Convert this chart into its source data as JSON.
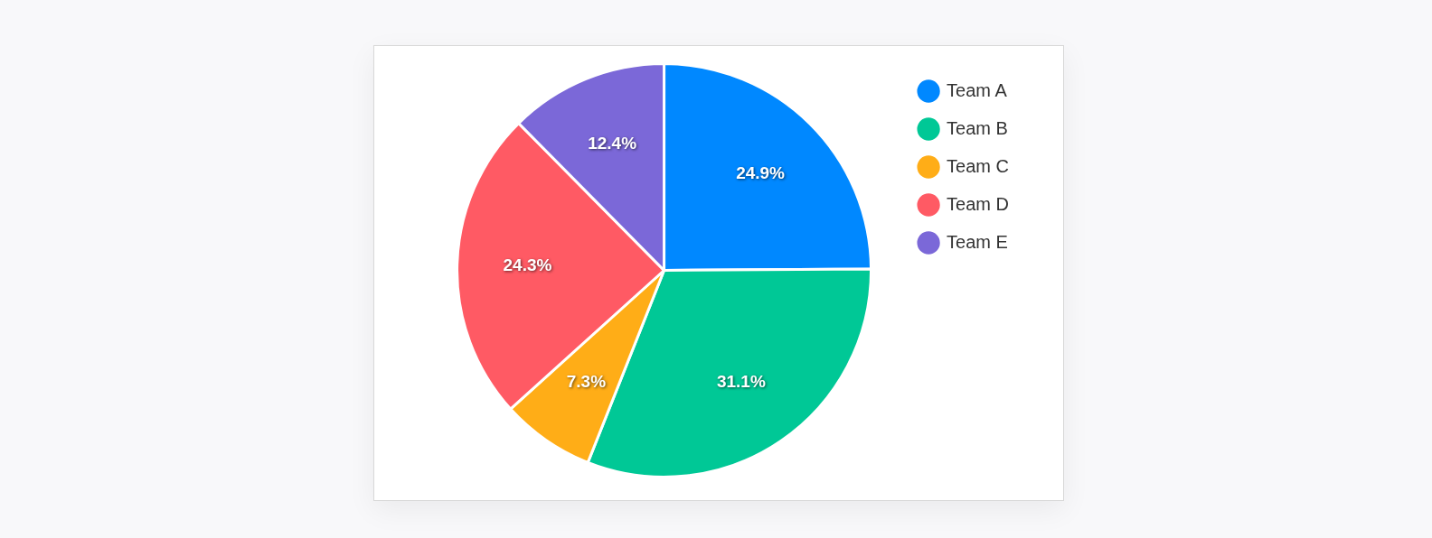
{
  "chart_data": {
    "type": "pie",
    "categories": [
      "Team A",
      "Team B",
      "Team C",
      "Team D",
      "Team E"
    ],
    "values": [
      24.9,
      31.1,
      7.3,
      24.3,
      12.4
    ],
    "colors": [
      "#0088ff",
      "#00c896",
      "#ffad17",
      "#ff5a64",
      "#7b68d8"
    ],
    "value_labels": [
      "24.9%",
      "31.1%",
      "7.3%",
      "24.3%",
      "12.4%"
    ],
    "legend": "top right"
  }
}
